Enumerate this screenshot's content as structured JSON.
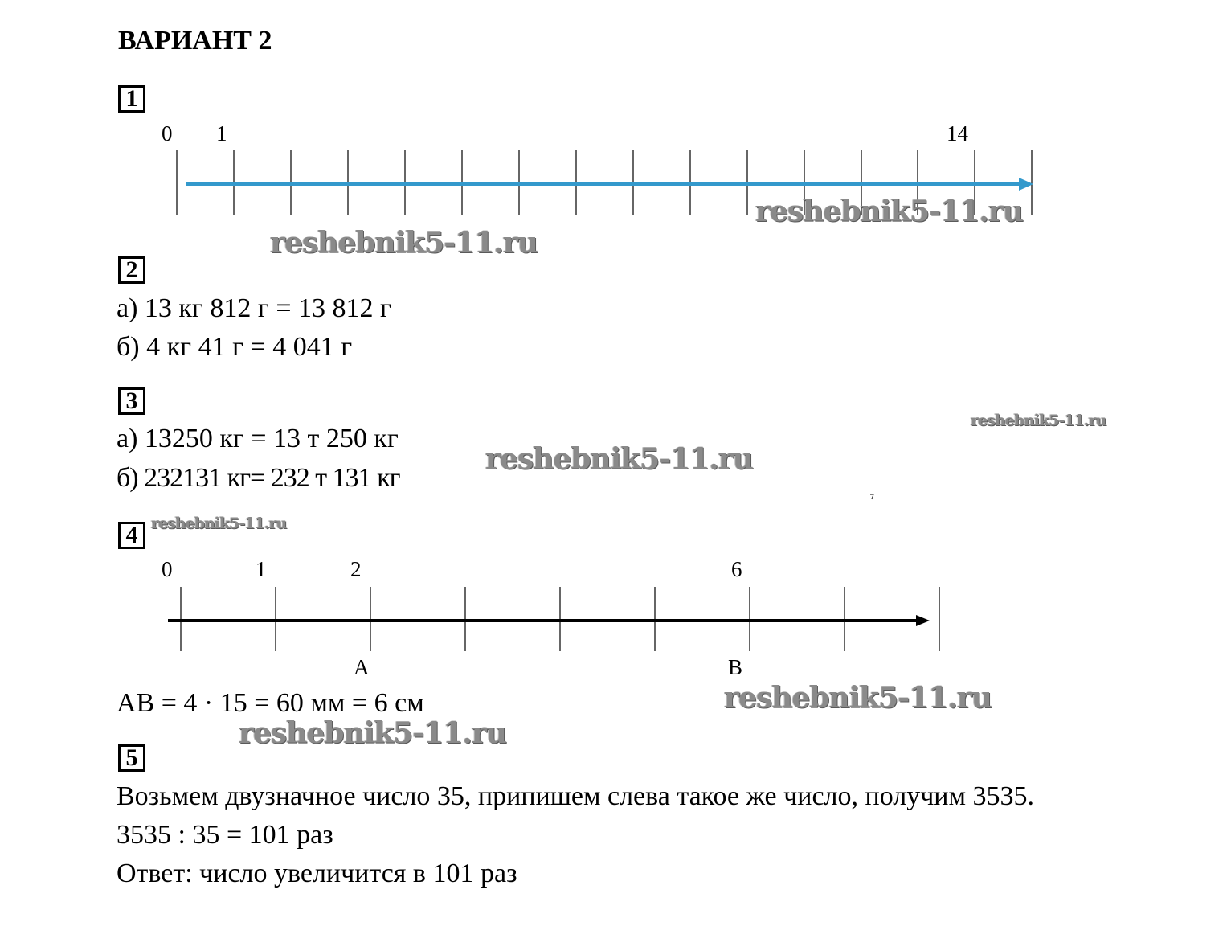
{
  "title": "ВАРИАНТ 2",
  "tasks": {
    "t1": {
      "number": "1",
      "labels": {
        "zero": "0",
        "one": "1",
        "fourteen": "14"
      },
      "arrow_color": "#3399cc"
    },
    "t2": {
      "number": "2",
      "line_a": "а) 13 кг 812 г = 13 812 г",
      "line_b": "б) 4 кг 41 г = 4 041 г"
    },
    "t3": {
      "number": "3",
      "line_a": "а) 13250 кг = 13 т 250 кг",
      "line_b": "б) 232131 кг= 232 т 131 кг"
    },
    "t4": {
      "number": "4",
      "labels": {
        "zero": "0",
        "one": "1",
        "two": "2",
        "six": "6",
        "a": "А",
        "b": "В"
      },
      "formula": "АВ = 4 · 15 = 60 мм = 6 см"
    },
    "t5": {
      "number": "5",
      "line_1": "Возьмем двузначное число 35, припишем слева такое же число, получим 3535.",
      "line_2": "3535 : 35 = 101 раз",
      "line_3": "Ответ: число увеличится в 101 раз"
    }
  },
  "watermark": "reshebnik5-11.ru"
}
